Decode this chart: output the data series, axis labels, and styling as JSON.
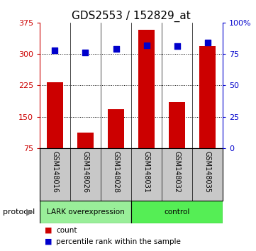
{
  "title": "GDS2553 / 152829_at",
  "samples": [
    "GSM148016",
    "GSM148026",
    "GSM148028",
    "GSM148031",
    "GSM148032",
    "GSM148035"
  ],
  "count_values": [
    232,
    112,
    168,
    358,
    185,
    318
  ],
  "percentile_values": [
    78,
    76,
    79,
    82,
    81,
    84
  ],
  "ylim_left": [
    75,
    375
  ],
  "ylim_right": [
    0,
    100
  ],
  "yticks_left": [
    75,
    150,
    225,
    300,
    375
  ],
  "yticks_right": [
    0,
    25,
    50,
    75,
    100
  ],
  "ytick_labels_right": [
    "0",
    "25",
    "50",
    "75",
    "100%"
  ],
  "bar_color": "#cc0000",
  "dot_color": "#0000cc",
  "grid_color": "#000000",
  "bg_color": "#ffffff",
  "plot_bg": "#ffffff",
  "group1_label": "LARK overexpression",
  "group2_label": "control",
  "group1_color": "#99ee99",
  "group2_color": "#55ee55",
  "group1_indices": [
    0,
    1,
    2
  ],
  "group2_indices": [
    3,
    4,
    5
  ],
  "protocol_label": "protocol",
  "legend_count_label": "count",
  "legend_pct_label": "percentile rank within the sample",
  "title_fontsize": 11,
  "tick_fontsize": 8,
  "label_fontsize": 7,
  "bar_width": 0.55,
  "dot_size": 40
}
